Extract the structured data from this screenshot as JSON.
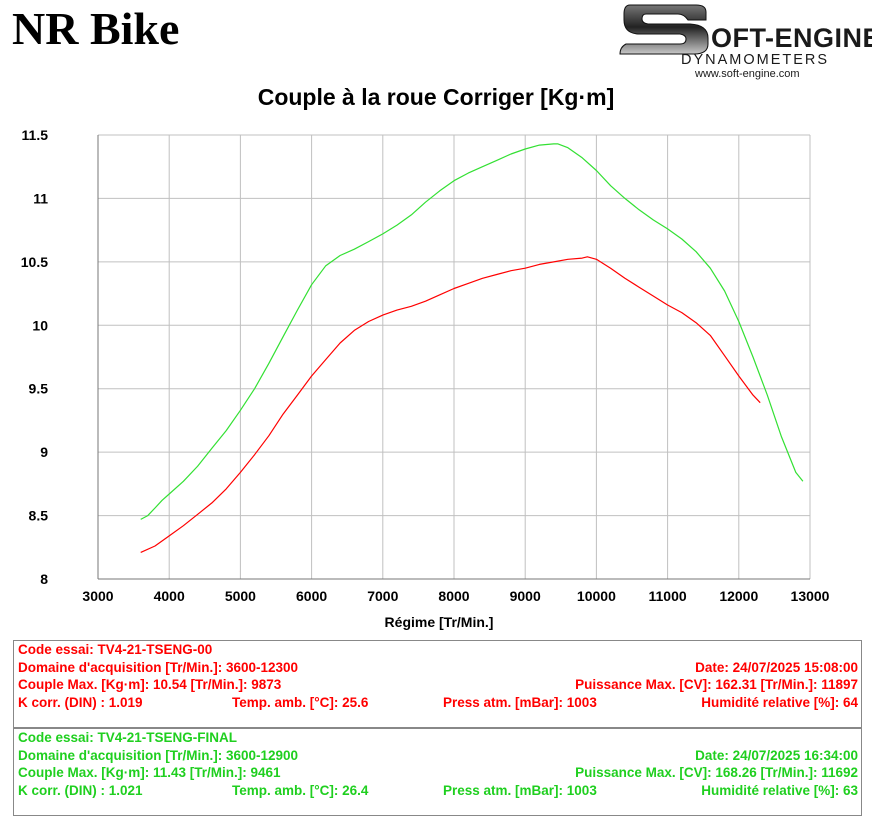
{
  "header": {
    "brand": "NR Bike",
    "logo": {
      "name": "SOFT-ENGINE",
      "tagline": "DYNAMOMETERS",
      "url": "www.soft-engine.com"
    }
  },
  "chart_data": {
    "type": "line",
    "title": "Couple à la roue Corriger [Kg·m]",
    "xlabel": "Régime [Tr/Min.]",
    "ylabel": "",
    "xlim": [
      3000,
      13000
    ],
    "ylim": [
      8,
      11.5
    ],
    "xticks": [
      "3000",
      "4000",
      "5000",
      "6000",
      "7000",
      "8000",
      "9000",
      "10000",
      "11000",
      "12000",
      "13000"
    ],
    "yticks": [
      "8",
      "8.5",
      "9",
      "9.5",
      "10",
      "10.5",
      "11",
      "11.5"
    ],
    "grid": true,
    "legend": "none",
    "series": [
      {
        "color": "#ff0000",
        "x": [
          3600,
          3800,
          4000,
          4200,
          4400,
          4600,
          4800,
          5000,
          5200,
          5400,
          5600,
          5800,
          6000,
          6200,
          6400,
          6600,
          6800,
          7000,
          7200,
          7400,
          7600,
          7800,
          8000,
          8200,
          8400,
          8600,
          8800,
          9000,
          9200,
          9400,
          9600,
          9800,
          9873,
          10000,
          10200,
          10400,
          10600,
          10800,
          11000,
          11200,
          11400,
          11600,
          11800,
          12000,
          12200,
          12300
        ],
        "y": [
          8.21,
          8.26,
          8.34,
          8.42,
          8.51,
          8.6,
          8.71,
          8.84,
          8.98,
          9.13,
          9.3,
          9.45,
          9.6,
          9.73,
          9.86,
          9.96,
          10.03,
          10.08,
          10.12,
          10.15,
          10.19,
          10.24,
          10.29,
          10.33,
          10.37,
          10.4,
          10.43,
          10.45,
          10.48,
          10.5,
          10.52,
          10.53,
          10.54,
          10.52,
          10.45,
          10.37,
          10.3,
          10.23,
          10.16,
          10.1,
          10.02,
          9.92,
          9.76,
          9.6,
          9.45,
          9.39
        ]
      },
      {
        "color": "#33e033",
        "x": [
          3600,
          3700,
          3800,
          3900,
          4000,
          4200,
          4400,
          4600,
          4800,
          5000,
          5200,
          5400,
          5600,
          5800,
          6000,
          6200,
          6400,
          6600,
          6800,
          7000,
          7200,
          7400,
          7600,
          7800,
          8000,
          8200,
          8400,
          8600,
          8800,
          9000,
          9200,
          9400,
          9461,
          9600,
          9800,
          10000,
          10200,
          10400,
          10600,
          10800,
          11000,
          11200,
          11400,
          11600,
          11800,
          12000,
          12200,
          12400,
          12600,
          12800,
          12900
        ],
        "y": [
          8.47,
          8.5,
          8.56,
          8.62,
          8.67,
          8.77,
          8.89,
          9.03,
          9.17,
          9.33,
          9.5,
          9.7,
          9.91,
          10.12,
          10.32,
          10.47,
          10.55,
          10.6,
          10.66,
          10.72,
          10.79,
          10.87,
          10.97,
          11.06,
          11.14,
          11.2,
          11.25,
          11.3,
          11.35,
          11.39,
          11.42,
          11.43,
          11.43,
          11.4,
          11.32,
          11.22,
          11.1,
          11.0,
          10.91,
          10.83,
          10.76,
          10.68,
          10.58,
          10.45,
          10.27,
          10.03,
          9.75,
          9.45,
          9.12,
          8.84,
          8.77
        ]
      }
    ]
  },
  "tests": [
    {
      "color": "#ff0000",
      "code": "Code essai: TV4-21-TSENG-00",
      "domaine": "Domaine d'acquisition [Tr/Min.]: 3600-12300",
      "date": "Date: 24/07/2025   15:08:00",
      "couple": "Couple Max. [Kg·m]: 10.54   [Tr/Min.]: 9873",
      "puissance": "Puissance Max. [CV]: 162.31   [Tr/Min.]: 11897",
      "kcorr": "K corr. (DIN) : 1.019",
      "temp": "Temp. amb. [°C]: 25.6",
      "press": "Press atm. [mBar]: 1003",
      "humid": "Humidité relative [%]: 64"
    },
    {
      "color": "#1fcf1f",
      "code": "Code essai: TV4-21-TSENG-FINAL",
      "domaine": "Domaine d'acquisition [Tr/Min.]: 3600-12900",
      "date": "Date: 24/07/2025   16:34:00",
      "couple": "Couple Max. [Kg·m]: 11.43   [Tr/Min.]: 9461",
      "puissance": "Puissance Max. [CV]: 168.26   [Tr/Min.]: 11692",
      "kcorr": "K corr. (DIN) : 1.021",
      "temp": "Temp. amb. [°C]: 26.4",
      "press": "Press atm. [mBar]: 1003",
      "humid": "Humidité relative [%]: 63"
    }
  ]
}
